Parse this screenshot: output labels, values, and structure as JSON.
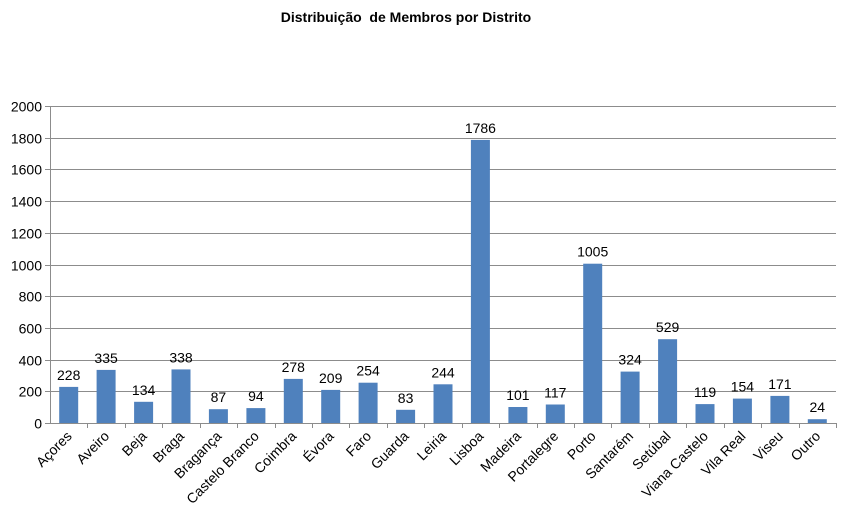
{
  "chart_data": {
    "type": "bar",
    "title": "Distribuição  de Membros por Distrito",
    "xlabel": "",
    "ylabel": "",
    "ylim": [
      0,
      2000
    ],
    "yticks": [
      0,
      200,
      400,
      600,
      800,
      1000,
      1200,
      1400,
      1600,
      1800,
      2000
    ],
    "grid": true,
    "legend": "none",
    "bar_color": "#4F81BD",
    "categories": [
      "Açores",
      "Aveiro",
      "Beja",
      "Braga",
      "Bragança",
      "Castelo Branco",
      "Coimbra",
      "Évora",
      "Faro",
      "Guarda",
      "Leiria",
      "Lisboa",
      "Madeira",
      "Portalegre",
      "Porto",
      "Santarém",
      "Setúbal",
      "Viana Castelo",
      "Vila Real",
      "Viseu",
      "Outro"
    ],
    "values": [
      228,
      335,
      134,
      338,
      87,
      94,
      278,
      209,
      254,
      83,
      244,
      1786,
      101,
      117,
      1005,
      324,
      529,
      119,
      154,
      171,
      24
    ]
  }
}
